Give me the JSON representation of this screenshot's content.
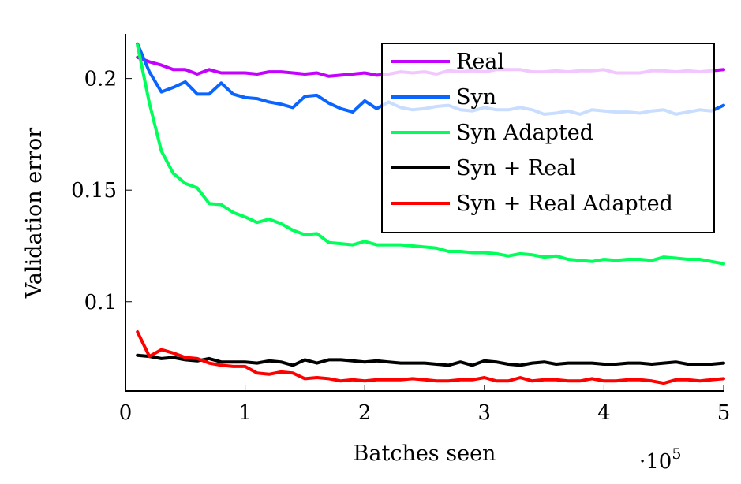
{
  "chart_data": {
    "type": "line",
    "xlabel": "Batches seen",
    "ylabel": "Validation error",
    "x_multiplier_base": "·10",
    "x_multiplier_exp": "5",
    "xlim": [
      0,
      5
    ],
    "ylim": [
      0.06,
      0.22
    ],
    "xticks": [
      0,
      1,
      2,
      3,
      4,
      5
    ],
    "xtick_labels": [
      "0",
      "1",
      "2",
      "3",
      "4",
      "5"
    ],
    "yticks": [
      0.1,
      0.15,
      0.2
    ],
    "ytick_labels": [
      "0.1",
      "0.15",
      "0.2"
    ],
    "grid": false,
    "legend_position": "top-right",
    "x": [
      0.1,
      0.2,
      0.3,
      0.4,
      0.5,
      0.6,
      0.7,
      0.8,
      0.9,
      1.0,
      1.1,
      1.2,
      1.3,
      1.4,
      1.5,
      1.6,
      1.7,
      1.8,
      1.9,
      2.0,
      2.1,
      2.2,
      2.3,
      2.4,
      2.5,
      2.6,
      2.7,
      2.8,
      2.9,
      3.0,
      3.1,
      3.2,
      3.3,
      3.4,
      3.5,
      3.6,
      3.7,
      3.8,
      3.9,
      4.0,
      4.1,
      4.2,
      4.3,
      4.4,
      4.5,
      4.6,
      4.7,
      4.8,
      4.9,
      5.0
    ],
    "series": [
      {
        "name": "Real",
        "color": "#c400ff",
        "values": [
          0.2095,
          0.2075,
          0.206,
          0.204,
          0.204,
          0.202,
          0.204,
          0.2025,
          0.2025,
          0.2025,
          0.202,
          0.203,
          0.203,
          0.2025,
          0.202,
          0.2025,
          0.201,
          0.2015,
          0.202,
          0.2025,
          0.2015,
          0.202,
          0.203,
          0.2025,
          0.203,
          0.202,
          0.2035,
          0.203,
          0.2035,
          0.203,
          0.204,
          0.204,
          0.204,
          0.203,
          0.203,
          0.2035,
          0.203,
          0.2035,
          0.2035,
          0.204,
          0.2025,
          0.2025,
          0.2025,
          0.2035,
          0.2035,
          0.203,
          0.2035,
          0.203,
          0.2035,
          0.204
        ]
      },
      {
        "name": "Syn",
        "color": "#0a64ff",
        "values": [
          0.2155,
          0.203,
          0.194,
          0.196,
          0.1985,
          0.193,
          0.193,
          0.198,
          0.193,
          0.1915,
          0.191,
          0.1895,
          0.1885,
          0.187,
          0.192,
          0.1925,
          0.189,
          0.1865,
          0.185,
          0.19,
          0.1865,
          0.1895,
          0.187,
          0.186,
          0.1865,
          0.1875,
          0.188,
          0.186,
          0.1855,
          0.187,
          0.186,
          0.186,
          0.187,
          0.186,
          0.184,
          0.1845,
          0.1855,
          0.184,
          0.186,
          0.1855,
          0.185,
          0.185,
          0.1845,
          0.1855,
          0.186,
          0.184,
          0.185,
          0.186,
          0.1855,
          0.188
        ]
      },
      {
        "name": "Syn Adapted",
        "color": "#00ff5a",
        "values": [
          0.215,
          0.189,
          0.1675,
          0.1575,
          0.153,
          0.151,
          0.144,
          0.1435,
          0.14,
          0.138,
          0.1355,
          0.137,
          0.135,
          0.132,
          0.13,
          0.1305,
          0.1265,
          0.126,
          0.1255,
          0.127,
          0.1255,
          0.1255,
          0.1255,
          0.125,
          0.1245,
          0.124,
          0.1225,
          0.1225,
          0.122,
          0.122,
          0.1215,
          0.1205,
          0.1215,
          0.121,
          0.12,
          0.1205,
          0.119,
          0.1185,
          0.118,
          0.119,
          0.1185,
          0.119,
          0.119,
          0.1185,
          0.12,
          0.1195,
          0.119,
          0.119,
          0.118,
          0.117
        ]
      },
      {
        "name": "Syn + Real",
        "color": "#000000",
        "values": [
          0.076,
          0.0755,
          0.0745,
          0.075,
          0.074,
          0.0735,
          0.0745,
          0.073,
          0.073,
          0.073,
          0.0725,
          0.0735,
          0.073,
          0.0715,
          0.074,
          0.0725,
          0.074,
          0.074,
          0.0735,
          0.073,
          0.0735,
          0.073,
          0.0725,
          0.0725,
          0.0725,
          0.072,
          0.0715,
          0.073,
          0.0715,
          0.0735,
          0.073,
          0.072,
          0.0715,
          0.0725,
          0.073,
          0.072,
          0.0725,
          0.0725,
          0.0725,
          0.072,
          0.072,
          0.0725,
          0.0725,
          0.072,
          0.0725,
          0.073,
          0.072,
          0.072,
          0.072,
          0.0725
        ]
      },
      {
        "name": "Syn + Real Adapted",
        "color": "#ff0000",
        "values": [
          0.0865,
          0.0755,
          0.0785,
          0.077,
          0.075,
          0.0745,
          0.0725,
          0.0715,
          0.071,
          0.071,
          0.068,
          0.0675,
          0.0685,
          0.068,
          0.0655,
          0.066,
          0.0655,
          0.0645,
          0.065,
          0.0645,
          0.065,
          0.065,
          0.065,
          0.0655,
          0.065,
          0.0645,
          0.0645,
          0.065,
          0.065,
          0.066,
          0.0645,
          0.0645,
          0.066,
          0.0645,
          0.065,
          0.065,
          0.0645,
          0.0645,
          0.0655,
          0.0645,
          0.0645,
          0.065,
          0.065,
          0.0645,
          0.0635,
          0.065,
          0.065,
          0.0645,
          0.065,
          0.0655
        ]
      }
    ]
  }
}
